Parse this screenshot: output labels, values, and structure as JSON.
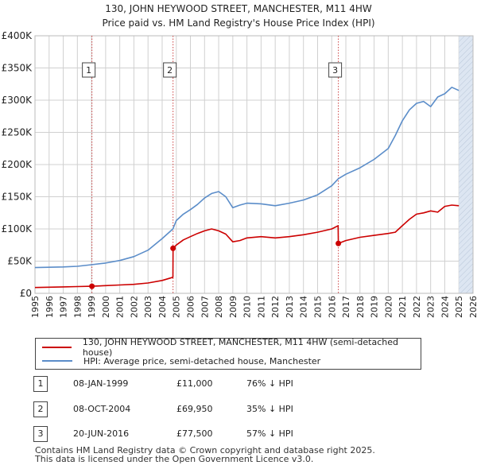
{
  "colors": {
    "price_paid": "#cc0000",
    "hpi": "#5b8dc9",
    "shade": "#dde6f2",
    "grid": "#d0d0d0",
    "marker_line": "#cc4444"
  },
  "chart_data": {
    "type": "line",
    "title": "130, JOHN HEYWOOD STREET, MANCHESTER, M11 4HW",
    "subtitle": "Price paid vs. HM Land Registry's House Price Index (HPI)",
    "xlim": [
      1995.0,
      2026.0
    ],
    "ylim": [
      0,
      400000
    ],
    "x_ticks": [
      1995,
      1996,
      1997,
      1998,
      1999,
      2000,
      2001,
      2002,
      2003,
      2004,
      2005,
      2006,
      2007,
      2008,
      2009,
      2010,
      2011,
      2012,
      2013,
      2014,
      2015,
      2016,
      2017,
      2018,
      2019,
      2020,
      2021,
      2022,
      2023,
      2024,
      2025,
      2026
    ],
    "y_ticks": [
      {
        "value": 0,
        "label": "£0"
      },
      {
        "value": 50000,
        "label": "£50K"
      },
      {
        "value": 100000,
        "label": "£100K"
      },
      {
        "value": 150000,
        "label": "£150K"
      },
      {
        "value": 200000,
        "label": "£200K"
      },
      {
        "value": 250000,
        "label": "£250K"
      },
      {
        "value": 300000,
        "label": "£300K"
      },
      {
        "value": 350000,
        "label": "£350K"
      },
      {
        "value": 400000,
        "label": "£400K"
      }
    ],
    "shaded_future_from": 2025.0,
    "series": [
      {
        "name": "130, JOHN HEYWOOD STREET, MANCHESTER, M11 4HW (semi-detached house)",
        "color": "#cc0000",
        "x": [
          1995.0,
          1996.0,
          1997.0,
          1998.0,
          1999.03,
          2000.0,
          2001.0,
          2002.0,
          2003.0,
          2004.0,
          2004.76,
          2004.77,
          2005.0,
          2005.5,
          2006.0,
          2006.5,
          2007.0,
          2007.5,
          2008.0,
          2008.5,
          2009.0,
          2009.5,
          2010.0,
          2011.0,
          2012.0,
          2013.0,
          2014.0,
          2015.0,
          2016.0,
          2016.45,
          2016.47,
          2017.0,
          2018.0,
          2019.0,
          2020.0,
          2020.5,
          2021.0,
          2021.5,
          2022.0,
          2022.5,
          2023.0,
          2023.5,
          2024.0,
          2024.5,
          2025.0
        ],
        "values": [
          9000,
          9500,
          10000,
          10500,
          11000,
          12000,
          13000,
          14000,
          16000,
          20000,
          25000,
          69950,
          75000,
          83000,
          88000,
          93000,
          97000,
          100000,
          97000,
          92000,
          80000,
          82000,
          86000,
          88000,
          86000,
          88000,
          91000,
          95000,
          100000,
          105000,
          77500,
          82000,
          87000,
          90000,
          93000,
          95000,
          105000,
          115000,
          123000,
          125000,
          128000,
          126000,
          135000,
          137000,
          136000
        ]
      },
      {
        "name": "HPI: Average price, semi-detached house, Manchester",
        "color": "#5b8dc9",
        "x": [
          1995.0,
          1996.0,
          1997.0,
          1998.0,
          1999.0,
          2000.0,
          2001.0,
          2002.0,
          2003.0,
          2004.0,
          2004.76,
          2005.0,
          2005.5,
          2006.0,
          2006.5,
          2007.0,
          2007.5,
          2008.0,
          2008.5,
          2009.0,
          2009.5,
          2010.0,
          2011.0,
          2012.0,
          2013.0,
          2014.0,
          2015.0,
          2016.0,
          2016.47,
          2017.0,
          2018.0,
          2019.0,
          2020.0,
          2020.5,
          2021.0,
          2021.5,
          2022.0,
          2022.5,
          2023.0,
          2023.5,
          2024.0,
          2024.5,
          2025.0
        ],
        "values": [
          40000,
          40500,
          41000,
          42000,
          44500,
          47000,
          51000,
          57000,
          67000,
          85000,
          100000,
          113000,
          123000,
          130000,
          138000,
          148000,
          155000,
          158000,
          150000,
          133000,
          137000,
          140000,
          139000,
          136000,
          140000,
          145000,
          153000,
          167000,
          178000,
          185000,
          195000,
          208000,
          225000,
          245000,
          268000,
          285000,
          295000,
          298000,
          290000,
          305000,
          310000,
          320000,
          315000
        ]
      }
    ],
    "markers": [
      {
        "label": "1",
        "x": 1999.03,
        "value": 11000
      },
      {
        "label": "2",
        "x": 2004.77,
        "value": 69950
      },
      {
        "label": "3",
        "x": 2016.47,
        "value": 77500
      }
    ]
  },
  "legend": {
    "price_paid_label": "130, JOHN HEYWOOD STREET, MANCHESTER, M11 4HW (semi-detached house)",
    "hpi_label": "HPI: Average price, semi-detached house, Manchester"
  },
  "transactions": [
    {
      "num": "1",
      "date": "08-JAN-1999",
      "price": "£11,000",
      "hpi": "76% ↓ HPI"
    },
    {
      "num": "2",
      "date": "08-OCT-2004",
      "price": "£69,950",
      "hpi": "35% ↓ HPI"
    },
    {
      "num": "3",
      "date": "20-JUN-2016",
      "price": "£77,500",
      "hpi": "57% ↓ HPI"
    }
  ],
  "footer": {
    "line1": "Contains HM Land Registry data © Crown copyright and database right 2025.",
    "line2": "This data is licensed under the Open Government Licence v3.0."
  }
}
